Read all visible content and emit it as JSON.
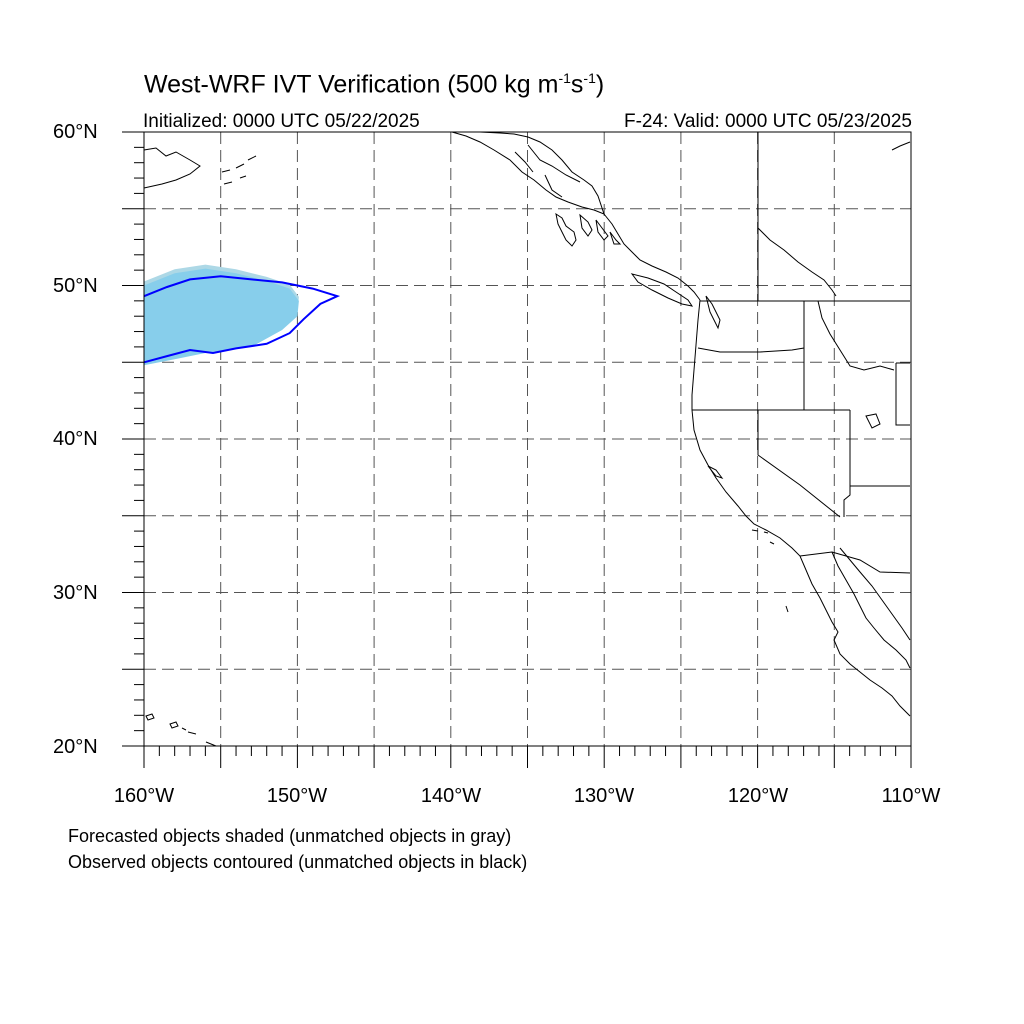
{
  "title": {
    "main": "West-WRF IVT Verification (500 kg m",
    "exp1": "-1",
    "mid": "s",
    "exp2": "-1",
    "close": ")"
  },
  "subtitle": {
    "initialized": "Initialized: 0000 UTC 05/22/2025",
    "valid": "F-24: Valid: 0000 UTC 05/23/2025"
  },
  "map": {
    "projection": "cylindrical equidistant",
    "lon_range": [
      -160,
      -110
    ],
    "lat_range": [
      20,
      60
    ],
    "grid": "dashed every 5 degrees",
    "lat_labels": [
      "60°N",
      "50°N",
      "40°N",
      "30°N",
      "20°N"
    ],
    "lon_labels": [
      "160°W",
      "150°W",
      "140°W",
      "130°W",
      "120°W",
      "110°W"
    ],
    "colors": {
      "forecast_matched_fill": "#87CEEB",
      "forecast_light_fill": "#ADD8E6",
      "observed_matched_contour": "#0000FF",
      "coastline": "#000000",
      "grid": "#555555"
    }
  },
  "objects": {
    "forecast": [
      {
        "label": "forecast-object-1",
        "matched": true,
        "outline_lonlat": [
          [
            -160,
            44.8
          ],
          [
            -158,
            45.2
          ],
          [
            -156,
            45.6
          ],
          [
            -153,
            46.0
          ],
          [
            -151,
            47.1
          ],
          [
            -150,
            48.0
          ],
          [
            -149.9,
            49.0
          ],
          [
            -150.5,
            49.8
          ],
          [
            -152,
            50.3
          ],
          [
            -154,
            50.8
          ],
          [
            -156,
            51.1
          ],
          [
            -158,
            50.8
          ],
          [
            -160,
            50.0
          ]
        ]
      }
    ],
    "observed": [
      {
        "label": "observed-object-1",
        "matched": true,
        "outline_lonlat": [
          [
            -160,
            45.0
          ],
          [
            -158.5,
            45.4
          ],
          [
            -157,
            45.8
          ],
          [
            -155.5,
            45.6
          ],
          [
            -154,
            45.9
          ],
          [
            -152,
            46.2
          ],
          [
            -150.5,
            46.9
          ],
          [
            -149.6,
            47.8
          ],
          [
            -148.5,
            48.8
          ],
          [
            -147.4,
            49.3
          ],
          [
            -149,
            49.8
          ],
          [
            -151,
            50.2
          ],
          [
            -153,
            50.4
          ],
          [
            -155,
            50.6
          ],
          [
            -157,
            50.4
          ],
          [
            -158.5,
            49.9
          ],
          [
            -160,
            49.3
          ]
        ]
      }
    ]
  },
  "notes": {
    "forecast": "Forecasted objects shaded (unmatched objects in gray)",
    "observed": "Observed objects contoured (unmatched objects in black)"
  }
}
